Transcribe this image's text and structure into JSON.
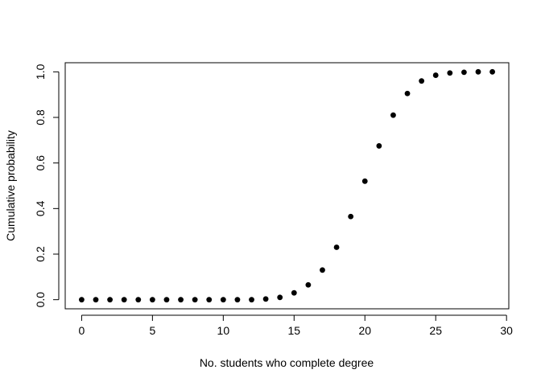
{
  "chart_data": {
    "type": "scatter",
    "title": "",
    "xlabel": "No. students who complete degree",
    "ylabel": "Cumulative probability",
    "xlim": [
      -1.16,
      30.16
    ],
    "ylim": [
      -0.04,
      1.04
    ],
    "x_ticks": [
      0,
      5,
      10,
      15,
      20,
      25,
      30
    ],
    "x_tick_labels": [
      "0",
      "5",
      "10",
      "15",
      "20",
      "25",
      "30"
    ],
    "y_ticks": [
      0,
      0.2,
      0.4,
      0.6,
      0.8,
      1
    ],
    "y_tick_labels": [
      "0.0",
      "0.2",
      "0.4",
      "0.6",
      "0.8",
      "1.0"
    ],
    "grid": false,
    "legend": "none",
    "point_color": "#000000",
    "x": [
      0,
      1,
      2,
      3,
      4,
      5,
      6,
      7,
      8,
      9,
      10,
      11,
      12,
      13,
      14,
      15,
      16,
      17,
      18,
      19,
      20,
      21,
      22,
      23,
      24,
      25,
      26,
      27,
      28,
      29
    ],
    "y": [
      0,
      0,
      0,
      0,
      0,
      0,
      0,
      0,
      0,
      0,
      0,
      0,
      0,
      0.003,
      0.01,
      0.03,
      0.065,
      0.13,
      0.23,
      0.365,
      0.52,
      0.675,
      0.81,
      0.905,
      0.96,
      0.985,
      0.995,
      0.998,
      1.0,
      1.0
    ]
  }
}
